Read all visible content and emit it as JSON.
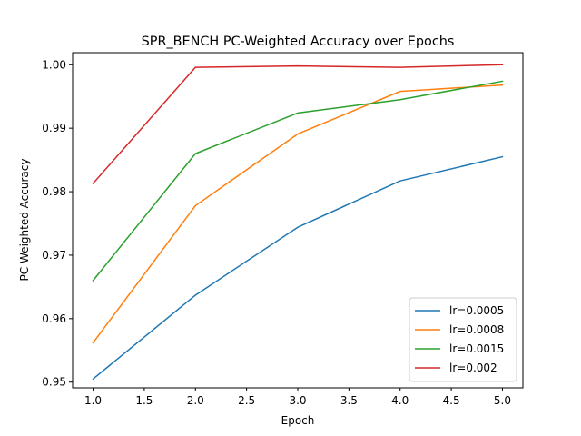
{
  "chart_data": {
    "type": "line",
    "title": "SPR_BENCH PC-Weighted Accuracy over Epochs",
    "xlabel": "Epoch",
    "ylabel": "PC-Weighted Accuracy",
    "xlim": [
      0.8,
      5.2
    ],
    "ylim": [
      0.9491,
      1.0019
    ],
    "xticks": [
      1.0,
      1.5,
      2.0,
      2.5,
      3.0,
      3.5,
      4.0,
      4.5,
      5.0
    ],
    "xtick_labels": [
      "1.0",
      "1.5",
      "2.0",
      "2.5",
      "3.0",
      "3.5",
      "4.0",
      "4.5",
      "5.0"
    ],
    "yticks": [
      0.95,
      0.96,
      0.97,
      0.98,
      0.99,
      1.0
    ],
    "ytick_labels": [
      "0.95",
      "0.96",
      "0.97",
      "0.98",
      "0.99",
      "1.00"
    ],
    "grid": false,
    "legend_position": "bottom-right",
    "x": [
      1,
      2,
      3,
      4,
      5
    ],
    "series": [
      {
        "name": "lr=0.0005",
        "color": "#1f77b4",
        "values": [
          0.9505,
          0.9637,
          0.9744,
          0.9817,
          0.9855
        ]
      },
      {
        "name": "lr=0.0008",
        "color": "#ff7f0e",
        "values": [
          0.9562,
          0.9778,
          0.9891,
          0.9958,
          0.9968
        ]
      },
      {
        "name": "lr=0.0015",
        "color": "#2ca02c",
        "values": [
          0.966,
          0.986,
          0.9924,
          0.9945,
          0.9974
        ]
      },
      {
        "name": "lr=0.002",
        "color": "#d62728",
        "values": [
          0.9813,
          0.9996,
          0.9998,
          0.9996,
          1.0
        ]
      }
    ]
  }
}
